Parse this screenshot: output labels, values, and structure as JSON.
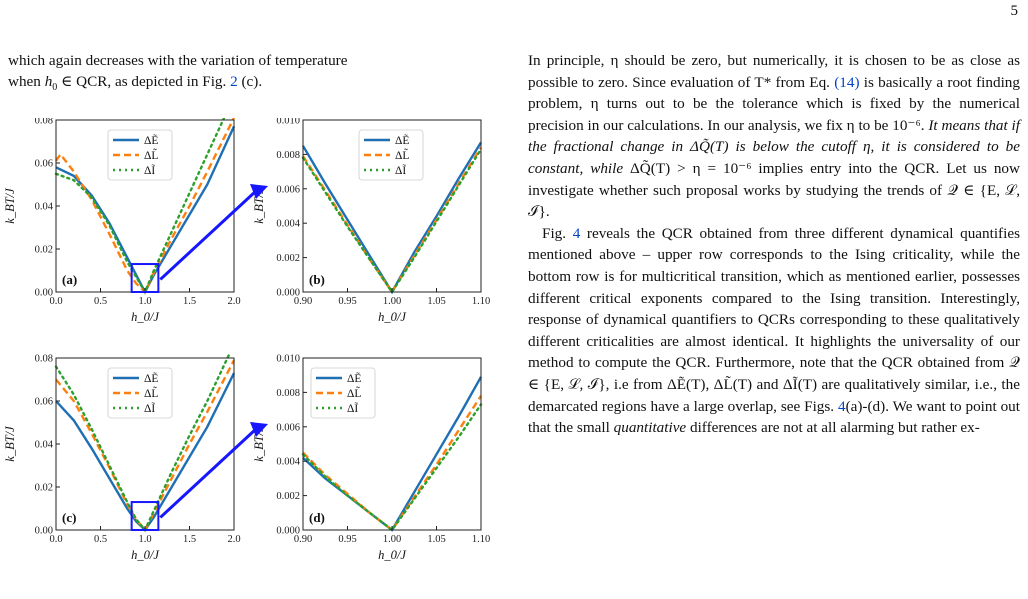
{
  "page_number": "5",
  "left_text": {
    "line1": "which again decreases with the variation of temperature",
    "line2_a": "when ",
    "line2_b": "h",
    "line2_c": "0",
    "line2_d": " ∈ QCR, as depicted in Fig. ",
    "line2_ref": "2",
    "line2_e": " (c)."
  },
  "right_text": {
    "p1_a": "In principle, η should be zero, but numerically, it is chosen to be as close as possible to zero. Since evaluation of T* from Eq. ",
    "p1_ref": "(14)",
    "p1_b": " is basically a root finding problem, η turns out to be the tolerance which is fixed by the numerical precision in our calculations. In our analysis, we fix η to be 10⁻⁶. ",
    "p1_it": "It means that if the fractional change in ΔQ̃(T) is below the cutoff η, it is considered to be constant, while",
    "p1_c": " ΔQ̃(T) > η = 10⁻⁶ implies entry into the QCR. Let us now investigate whether such proposal works by studying the trends of 𝒬 ∈ {E, ℒ, ℐ}.",
    "p2_a": "Fig. ",
    "p2_ref": "4",
    "p2_b": " reveals the QCR obtained from three different dynamical quantifies mentioned above – upper row corresponds to the Ising criticality, while the bottom row is for multicritical transition, which as mentioned earlier, possesses different critical exponents compared to the Ising transition. Interestingly, response of dynamical quantifiers to QCRs corresponding to these qualitatively different criticalities are almost identical. It highlights the universality of our method to compute the QCR. Furthermore, note that the QCR obtained from 𝒬 ∈ {E, ℒ, ℐ}, i.e from ΔẼ(T), ΔL̃(T) and ΔĨ(T) are qualitatively similar, i.e., the demarcated regions have a large overlap, see Figs. ",
    "p2_ref2": "4",
    "p2_c": "(a)-(d). We want to point out that the small ",
    "p2_it": "quantitative",
    "p2_d": " differences are not at all alarming but rather ex-"
  },
  "colors": {
    "E": "#1f6fb4",
    "L": "#ff7f0e",
    "I": "#2ca02c",
    "arrow": "#1616ff",
    "box": "#1616ff"
  },
  "legend": {
    "E": "ΔẼ",
    "L": "ΔL̃",
    "I": "ΔĨ"
  },
  "axis_labels": {
    "y": "k_BT/J",
    "x": "h_0/J"
  },
  "chart_data": [
    {
      "type": "line",
      "panel": "(a)",
      "xlabel": "h0/J",
      "ylabel": "kBT/J",
      "xlim": [
        0,
        2.0
      ],
      "ylim": [
        0,
        0.08
      ],
      "xticks": [
        "0.0",
        "0.5",
        "1.0",
        "1.5",
        "2.0"
      ],
      "yticks": [
        "0.00",
        "0.02",
        "0.04",
        "0.06",
        "0.08"
      ],
      "legend": "top-center",
      "series": [
        {
          "name": "ΔẼ",
          "x": [
            0.0,
            0.2,
            0.4,
            0.6,
            0.8,
            0.9,
            1.0,
            1.1,
            1.3,
            1.5,
            1.7,
            2.0
          ],
          "y": [
            0.058,
            0.054,
            0.045,
            0.032,
            0.016,
            0.008,
            0.0,
            0.008,
            0.022,
            0.036,
            0.05,
            0.077
          ]
        },
        {
          "name": "ΔL̃",
          "x": [
            0.0,
            0.05,
            0.2,
            0.4,
            0.6,
            0.8,
            0.9,
            1.0,
            1.1,
            1.3,
            1.5,
            1.7,
            2.0
          ],
          "y": [
            0.061,
            0.064,
            0.056,
            0.043,
            0.027,
            0.01,
            0.004,
            0.0,
            0.009,
            0.025,
            0.04,
            0.056,
            0.081
          ]
        },
        {
          "name": "ΔĨ",
          "x": [
            0.0,
            0.2,
            0.4,
            0.6,
            0.8,
            0.9,
            1.0,
            1.1,
            1.3,
            1.5,
            1.7,
            1.9
          ],
          "y": [
            0.055,
            0.052,
            0.044,
            0.031,
            0.014,
            0.007,
            0.0,
            0.01,
            0.028,
            0.046,
            0.064,
            0.082
          ]
        }
      ]
    },
    {
      "type": "line",
      "panel": "(b)",
      "xlabel": "h0/J",
      "ylabel": "kBT/J",
      "xlim": [
        0.9,
        1.1
      ],
      "ylim": [
        0,
        0.01
      ],
      "xticks": [
        "0.90",
        "0.95",
        "1.00",
        "1.05",
        "1.10"
      ],
      "yticks": [
        "0.000",
        "0.002",
        "0.004",
        "0.006",
        "0.008",
        "0.010"
      ],
      "legend": "top-right",
      "series": [
        {
          "name": "ΔẼ",
          "x": [
            0.9,
            0.925,
            0.95,
            0.975,
            1.0,
            1.025,
            1.05,
            1.075,
            1.1
          ],
          "y": [
            0.0085,
            0.0063,
            0.0042,
            0.0021,
            0.0,
            0.0023,
            0.0044,
            0.0066,
            0.0087
          ]
        },
        {
          "name": "ΔL̃",
          "x": [
            0.9,
            0.925,
            0.95,
            0.975,
            1.0,
            1.025,
            1.05,
            1.075,
            1.1
          ],
          "y": [
            0.0079,
            0.0059,
            0.0039,
            0.0019,
            0.0,
            0.0021,
            0.0042,
            0.0063,
            0.0084
          ]
        },
        {
          "name": "ΔĨ",
          "x": [
            0.9,
            0.925,
            0.95,
            0.975,
            1.0,
            1.025,
            1.05,
            1.075,
            1.1
          ],
          "y": [
            0.0078,
            0.0058,
            0.0038,
            0.0019,
            0.0,
            0.002,
            0.0041,
            0.0062,
            0.0083
          ]
        }
      ]
    },
    {
      "type": "line",
      "panel": "(c)",
      "xlabel": "h0/J",
      "ylabel": "kBT/J",
      "xlim": [
        0,
        2.0
      ],
      "ylim": [
        0,
        0.08
      ],
      "xticks": [
        "0.0",
        "0.5",
        "1.0",
        "1.5",
        "2.0"
      ],
      "yticks": [
        "0.00",
        "0.02",
        "0.04",
        "0.06",
        "0.08"
      ],
      "legend": "top-center",
      "series": [
        {
          "name": "ΔẼ",
          "x": [
            0.0,
            0.2,
            0.4,
            0.6,
            0.8,
            0.9,
            1.0,
            1.1,
            1.3,
            1.5,
            1.7,
            2.0
          ],
          "y": [
            0.06,
            0.051,
            0.038,
            0.024,
            0.01,
            0.004,
            0.0,
            0.006,
            0.02,
            0.034,
            0.048,
            0.073
          ]
        },
        {
          "name": "ΔL̃",
          "x": [
            0.0,
            0.2,
            0.4,
            0.6,
            0.8,
            0.9,
            1.0,
            1.1,
            1.3,
            1.5,
            1.7,
            2.0
          ],
          "y": [
            0.07,
            0.06,
            0.045,
            0.029,
            0.012,
            0.005,
            0.0,
            0.008,
            0.024,
            0.04,
            0.055,
            0.079
          ]
        },
        {
          "name": "ΔĨ",
          "x": [
            0.0,
            0.2,
            0.4,
            0.6,
            0.8,
            0.9,
            1.0,
            1.1,
            1.3,
            1.5,
            1.7,
            1.95
          ],
          "y": [
            0.076,
            0.063,
            0.047,
            0.03,
            0.013,
            0.005,
            0.0,
            0.009,
            0.027,
            0.044,
            0.06,
            0.082
          ]
        }
      ]
    },
    {
      "type": "line",
      "panel": "(d)",
      "xlabel": "h0/J",
      "ylabel": "kBT/J",
      "xlim": [
        0.9,
        1.1
      ],
      "ylim": [
        0,
        0.01
      ],
      "xticks": [
        "0.90",
        "0.95",
        "1.00",
        "1.05",
        "1.10"
      ],
      "yticks": [
        "0.000",
        "0.002",
        "0.004",
        "0.006",
        "0.008",
        "0.010"
      ],
      "legend": "top-left",
      "series": [
        {
          "name": "ΔẼ",
          "x": [
            0.9,
            0.925,
            0.95,
            0.975,
            1.0,
            1.025,
            1.05,
            1.075,
            1.1
          ],
          "y": [
            0.0042,
            0.003,
            0.002,
            0.001,
            0.0,
            0.0022,
            0.0044,
            0.0066,
            0.0089
          ]
        },
        {
          "name": "ΔL̃",
          "x": [
            0.9,
            0.925,
            0.95,
            0.975,
            1.0,
            1.025,
            1.05,
            1.075,
            1.1
          ],
          "y": [
            0.0045,
            0.0032,
            0.0021,
            0.001,
            0.0,
            0.0019,
            0.0038,
            0.0058,
            0.0078
          ]
        },
        {
          "name": "ΔĨ",
          "x": [
            0.9,
            0.925,
            0.95,
            0.975,
            1.0,
            1.025,
            1.05,
            1.075,
            1.1
          ],
          "y": [
            0.0044,
            0.0031,
            0.002,
            0.001,
            0.0,
            0.0018,
            0.0036,
            0.0054,
            0.0073
          ]
        }
      ]
    }
  ]
}
